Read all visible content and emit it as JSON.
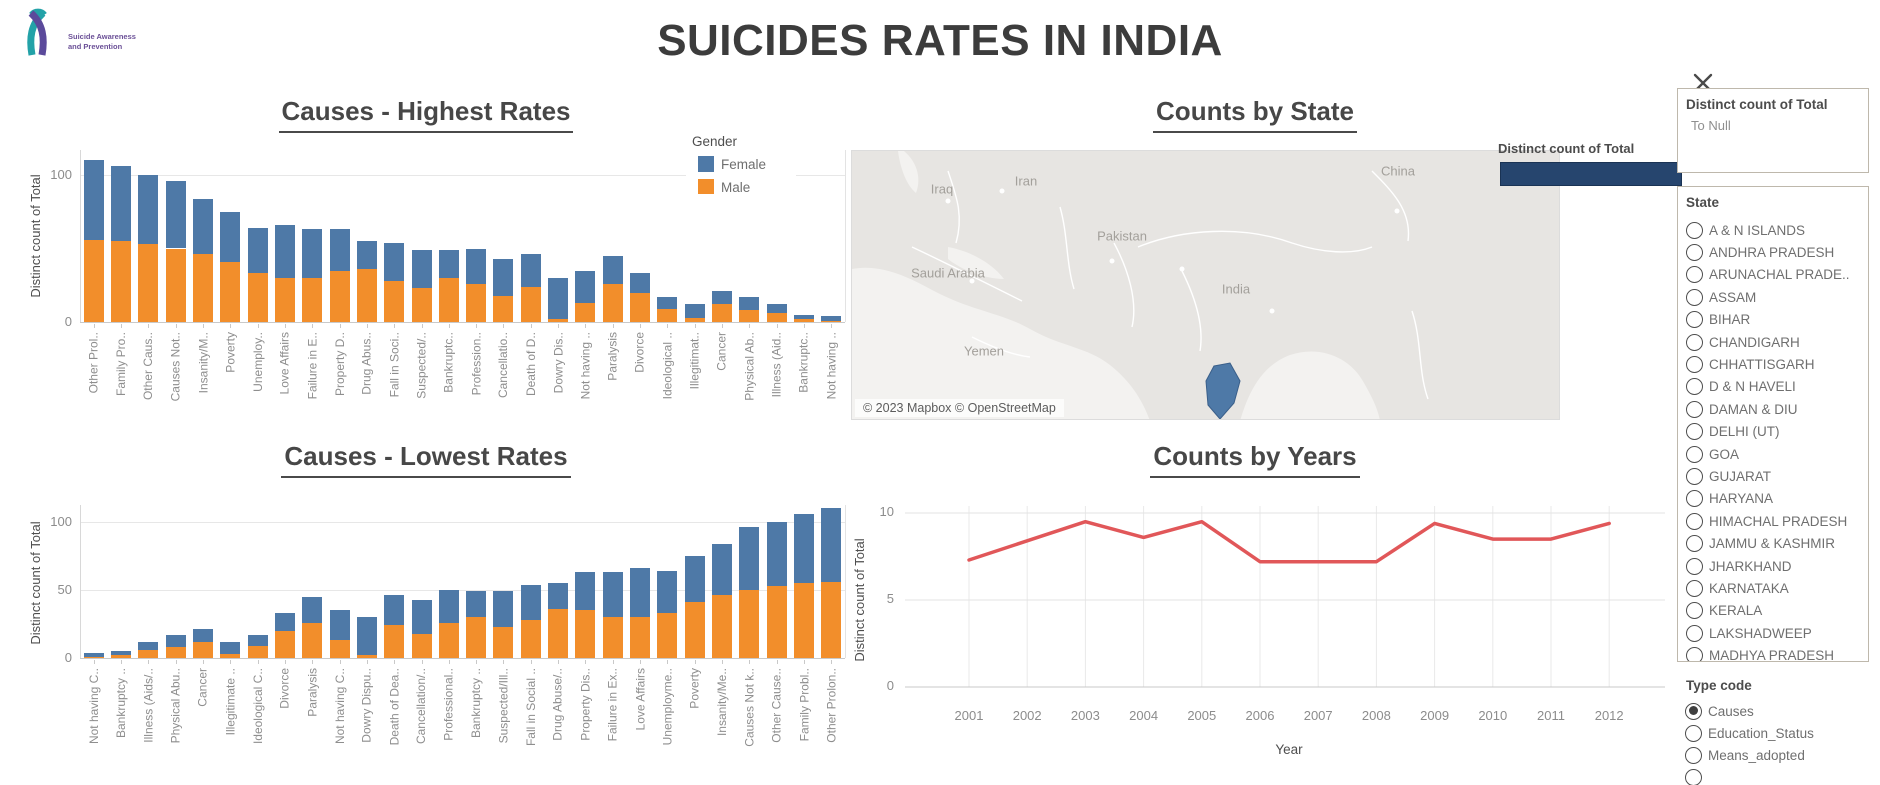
{
  "title": "SUICIDES RATES IN INDIA",
  "logo": {
    "line1": "Suicide Awareness",
    "line2": "and Prevention"
  },
  "colors": {
    "female": "#4e79a7",
    "male": "#f28e2b",
    "line": "#e15759",
    "navy": "#26456e"
  },
  "gender_legend": {
    "title": "Gender",
    "items": [
      {
        "label": "Female",
        "color": "#4e79a7"
      },
      {
        "label": "Male",
        "color": "#f28e2b"
      }
    ]
  },
  "chart_data": [
    {
      "id": "highest",
      "type": "bar",
      "stacked": true,
      "title": "Causes - Highest Rates",
      "ylabel": "Distinct count of Total",
      "yticks": [
        0,
        100
      ],
      "ylim": [
        0,
        115
      ],
      "categories": [
        "Other Prol..",
        "Family Pro..",
        "Other Caus..",
        "Causes Not..",
        "Insanity/M..",
        "Poverty",
        "Unemploy..",
        "Love Affairs",
        "Failure in E..",
        "Property D..",
        "Drug Abus..",
        "Fall in Soci..",
        "Suspected/..",
        "Bankruptc..",
        "Profession..",
        "Cancellatio..",
        "Death of D..",
        "Dowry Dis..",
        "Not having ..",
        "Paralysis",
        "Divorce",
        "Ideological ..",
        "Illegitimat..",
        "Cancer",
        "Physical Ab..",
        "Illness (Aid..",
        "Bankruptc..",
        "Not having .."
      ],
      "series": [
        {
          "name": "Male",
          "color": "#f28e2b",
          "values": [
            56,
            55,
            53,
            50,
            46,
            41,
            33,
            30,
            30,
            35,
            36,
            28,
            23,
            30,
            26,
            18,
            24,
            2,
            13,
            26,
            20,
            9,
            3,
            12,
            8,
            6,
            2,
            1
          ]
        },
        {
          "name": "Female",
          "color": "#4e79a7",
          "values": [
            54,
            51,
            47,
            46,
            38,
            34,
            31,
            36,
            33,
            28,
            19,
            26,
            26,
            19,
            24,
            25,
            22,
            28,
            22,
            19,
            13,
            8,
            9,
            9,
            9,
            6,
            3,
            3
          ]
        }
      ]
    },
    {
      "id": "lowest",
      "type": "bar",
      "stacked": true,
      "title": "Causes - Lowest Rates",
      "ylabel": "Distinct count of Total",
      "yticks": [
        0,
        50,
        100
      ],
      "ylim": [
        0,
        115
      ],
      "categories": [
        "Not having C..",
        "Bankruptcy ..",
        "Illness (Aids/..",
        "Physical Abu..",
        "Cancer",
        "Illegitimate ..",
        "Ideological C..",
        "Divorce",
        "Paralysis",
        "Not having C..",
        "Dowry Dispu..",
        "Death of Dea..",
        "Cancellation/..",
        "Professional..",
        "Bankruptcy ..",
        "Suspected/Ill..",
        "Fall in Social ..",
        "Drug Abuse/..",
        "Property Dis..",
        "Failure in Ex..",
        "Love Affairs",
        "Unemployme..",
        "Poverty",
        "Insanity/Me..",
        "Causes Not k..",
        "Other Cause..",
        "Family Probl..",
        "Other Prolon.."
      ],
      "series": [
        {
          "name": "Male",
          "color": "#f28e2b",
          "values": [
            1,
            2,
            6,
            8,
            12,
            3,
            9,
            20,
            26,
            13,
            2,
            24,
            18,
            26,
            30,
            23,
            28,
            36,
            35,
            30,
            30,
            33,
            41,
            46,
            50,
            53,
            55,
            56
          ]
        },
        {
          "name": "Female",
          "color": "#4e79a7",
          "values": [
            3,
            3,
            6,
            9,
            9,
            9,
            8,
            13,
            19,
            22,
            28,
            22,
            25,
            24,
            19,
            26,
            26,
            19,
            28,
            33,
            36,
            31,
            34,
            38,
            46,
            47,
            51,
            54
          ]
        }
      ]
    },
    {
      "id": "years",
      "type": "line",
      "title": "Counts by Years",
      "xlabel": "Year",
      "ylabel": "Distinct count of Total",
      "yticks": [
        0,
        5,
        10
      ],
      "ylim": [
        0,
        11
      ],
      "x": [
        2001,
        2002,
        2003,
        2004,
        2005,
        2006,
        2007,
        2008,
        2009,
        2010,
        2011,
        2012
      ],
      "values": [
        7.3,
        8.4,
        9.5,
        8.6,
        9.5,
        7.2,
        7.2,
        7.2,
        9.4,
        8.5,
        8.5,
        9.4
      ],
      "color": "#e15759"
    },
    {
      "id": "map",
      "type": "map",
      "title": "Counts by State",
      "legend_label": "Distinct count of Total",
      "labels": [
        "Iraq",
        "Iran",
        "Pakistan",
        "Saudi Arabia",
        "Yemen",
        "India",
        "China"
      ],
      "attribution": "© 2023 Mapbox © OpenStreetMap"
    }
  ],
  "filter_card": {
    "title": "Distinct count of Total",
    "subtitle": "To Null"
  },
  "state_filter": {
    "title": "State",
    "options": [
      "A & N ISLANDS",
      "ANDHRA PRADESH",
      "ARUNACHAL PRADE..",
      "ASSAM",
      "BIHAR",
      "CHANDIGARH",
      "CHHATTISGARH",
      "D & N HAVELI",
      "DAMAN & DIU",
      "DELHI (UT)",
      "GOA",
      "GUJARAT",
      "HARYANA",
      "HIMACHAL PRADESH",
      "JAMMU & KASHMIR",
      "JHARKHAND",
      "KARNATAKA",
      "KERALA",
      "LAKSHADWEEP",
      "MADHYA PRADESH"
    ]
  },
  "type_code_filter": {
    "title": "Type code",
    "options": [
      "Causes",
      "Education_Status",
      "Means_adopted"
    ],
    "selected": "Causes"
  }
}
